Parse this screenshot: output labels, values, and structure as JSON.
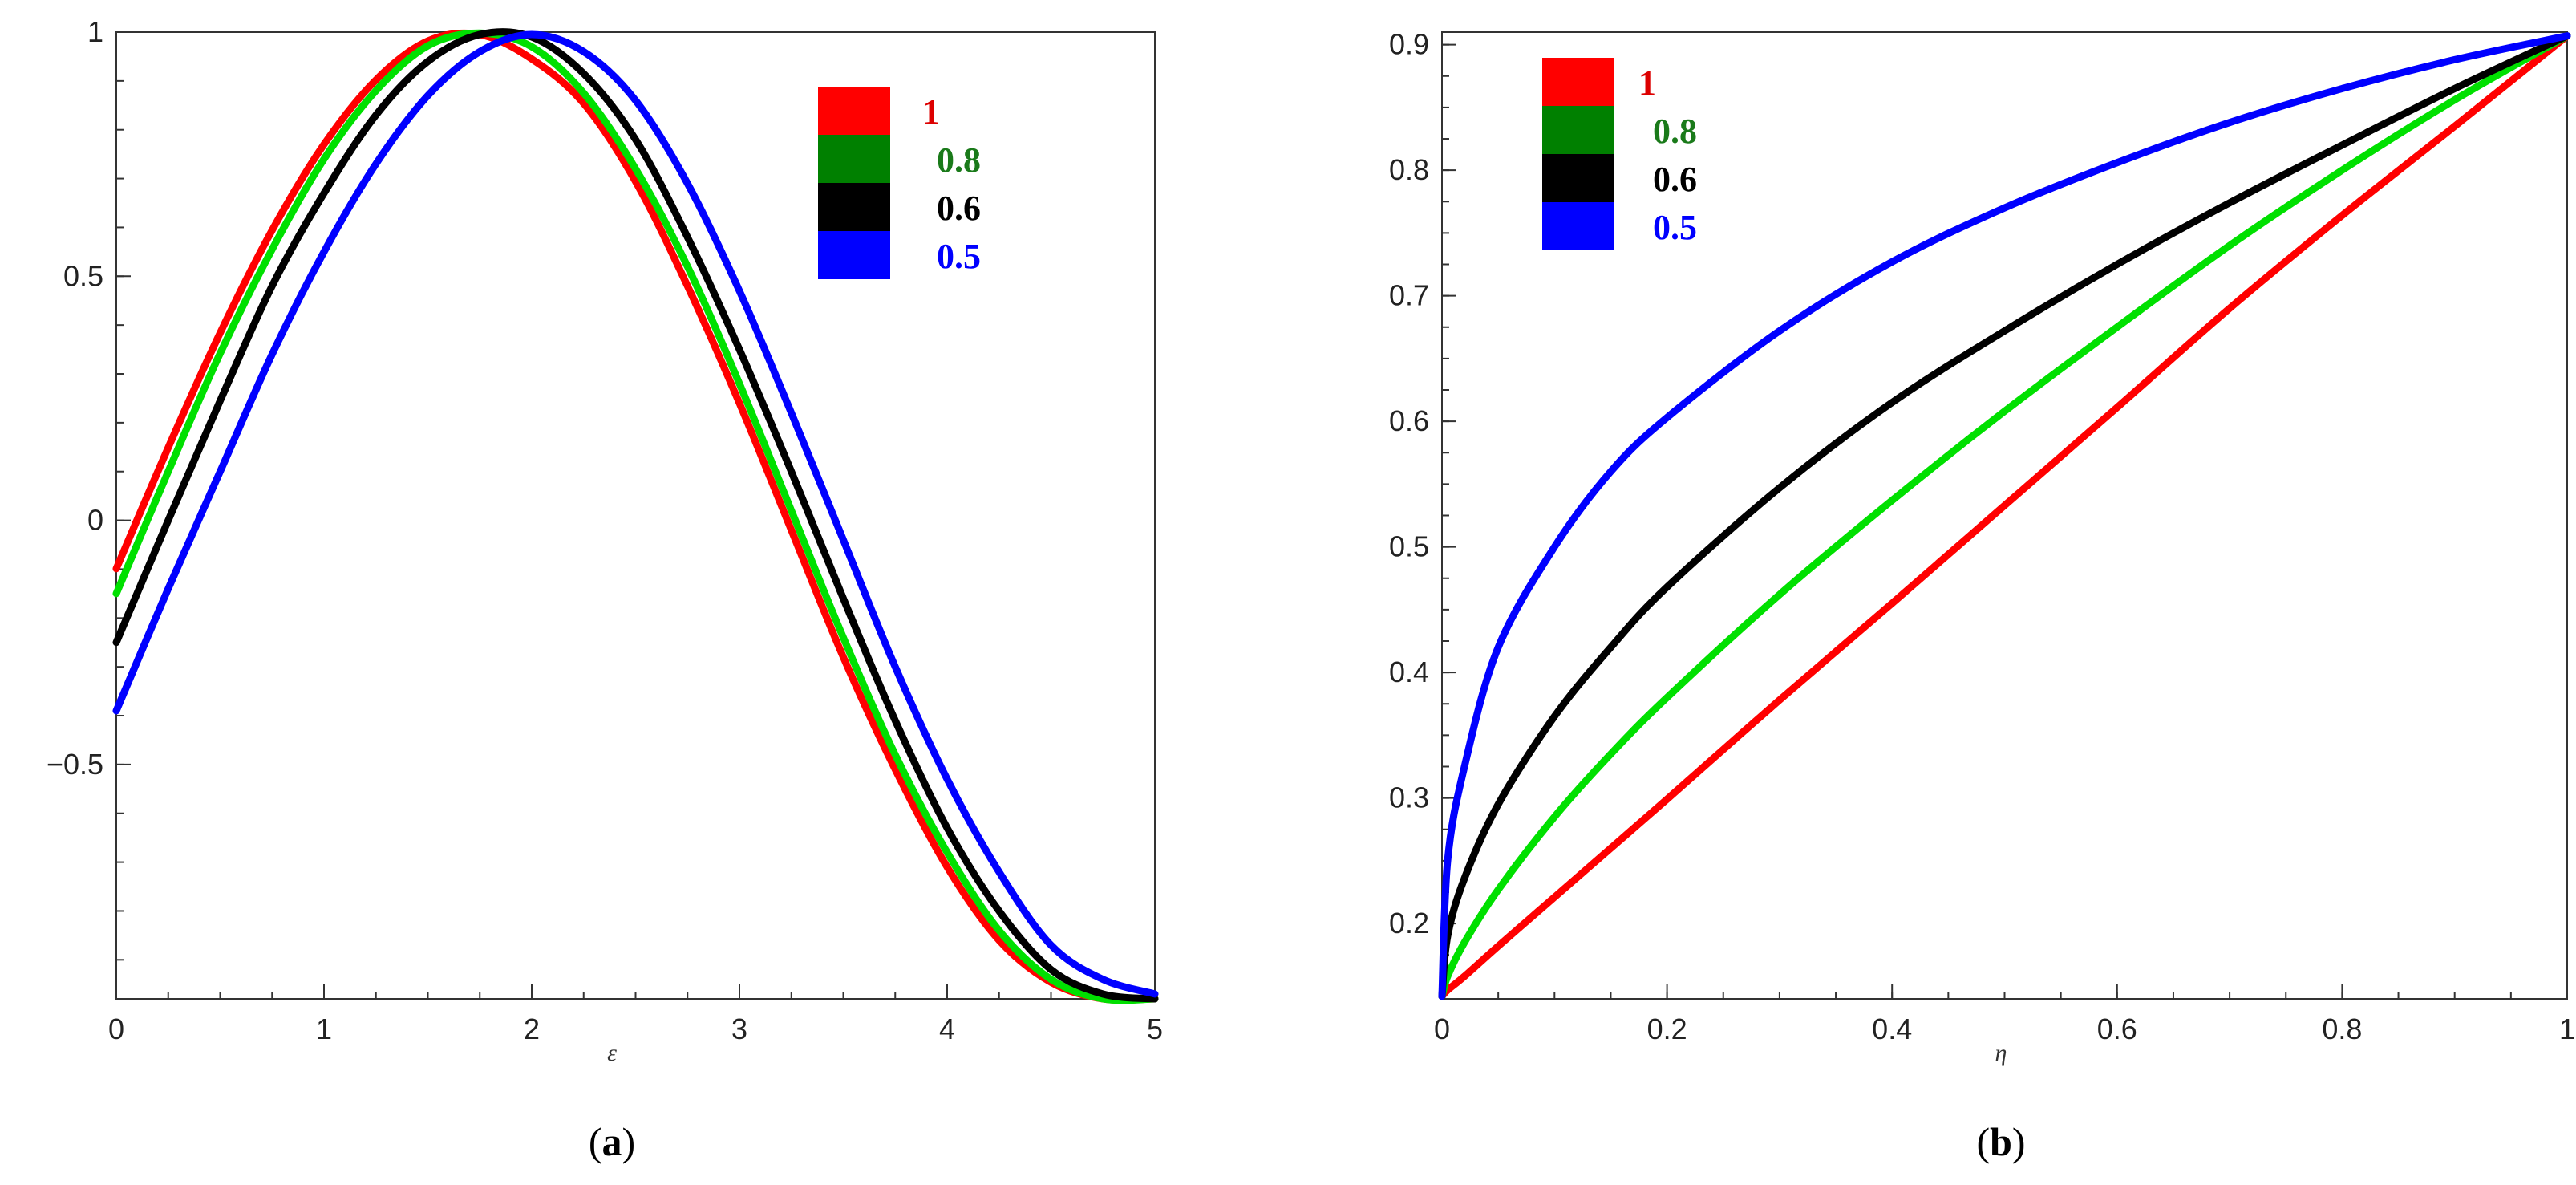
{
  "colors": {
    "red": "#ff0000",
    "green": "#008000",
    "lime": "#00e000",
    "black": "#000000",
    "blue": "#0000ff"
  },
  "chart_data": [
    {
      "type": "line",
      "caption_open": "(",
      "caption_letter": "a",
      "caption_close": ")",
      "xlabel": "ε",
      "ylabel": "",
      "xlim": [
        0,
        5
      ],
      "ylim": [
        -0.98,
        1.0
      ],
      "xticks": [
        {
          "v": 0,
          "label": "0"
        },
        {
          "v": 1,
          "label": "1"
        },
        {
          "v": 2,
          "label": "2"
        },
        {
          "v": 3,
          "label": "3"
        },
        {
          "v": 4,
          "label": "4"
        },
        {
          "v": 5,
          "label": "5"
        }
      ],
      "yticks": [
        {
          "v": 1,
          "label": "1"
        },
        {
          "v": 0.5,
          "label": "0.5"
        },
        {
          "v": 0,
          "label": "0"
        },
        {
          "v": -0.5,
          "label": "−0.5"
        }
      ],
      "x": [
        0,
        0.25,
        0.5,
        0.75,
        1.0,
        1.25,
        1.5,
        1.75,
        2.0,
        2.25,
        2.5,
        2.75,
        3.0,
        3.25,
        3.5,
        3.75,
        4.0,
        4.25,
        4.5,
        4.75,
        5.0
      ],
      "series": [
        {
          "name": "1",
          "color": "#ff0000",
          "legend_swatch": "#ff0000",
          "legend_color": "#dd0000",
          "values": [
            -0.099,
            0.149,
            0.384,
            0.594,
            0.77,
            0.902,
            0.982,
            0.995,
            0.945,
            0.854,
            0.694,
            0.48,
            0.24,
            -0.02,
            -0.28,
            -0.51,
            -0.71,
            -0.86,
            -0.946,
            -0.98,
            -0.98
          ]
        },
        {
          "name": "0.8",
          "color": "#00e000",
          "legend_swatch": "#008000",
          "legend_color": "#1a7a1a",
          "values": [
            -0.15,
            0.1,
            0.342,
            0.555,
            0.74,
            0.88,
            0.972,
            0.998,
            0.97,
            0.875,
            0.72,
            0.52,
            0.28,
            0.02,
            -0.24,
            -0.48,
            -0.68,
            -0.84,
            -0.94,
            -0.98,
            -0.98
          ]
        },
        {
          "name": "0.6",
          "color": "#000000",
          "legend_swatch": "#000000",
          "legend_color": "#000000",
          "values": [
            -0.25,
            0.0,
            0.245,
            0.48,
            0.67,
            0.83,
            0.94,
            0.995,
            0.99,
            0.915,
            0.78,
            0.58,
            0.35,
            0.1,
            -0.16,
            -0.41,
            -0.63,
            -0.8,
            -0.92,
            -0.97,
            -0.98
          ]
        },
        {
          "name": "0.5",
          "color": "#0000ff",
          "legend_swatch": "#0000ff",
          "legend_color": "#0000ff",
          "values": [
            -0.39,
            -0.14,
            0.1,
            0.34,
            0.55,
            0.73,
            0.87,
            0.96,
            0.995,
            0.96,
            0.86,
            0.69,
            0.47,
            0.22,
            -0.04,
            -0.3,
            -0.53,
            -0.72,
            -0.87,
            -0.94,
            -0.97
          ]
        }
      ]
    },
    {
      "type": "line",
      "caption_open": "(",
      "caption_letter": "b",
      "caption_close": ")",
      "xlabel": "η",
      "ylabel": "",
      "xlim": [
        0,
        1
      ],
      "ylim": [
        0.14,
        0.91
      ],
      "xticks": [
        {
          "v": 0,
          "label": "0"
        },
        {
          "v": 0.2,
          "label": "0.2"
        },
        {
          "v": 0.4,
          "label": "0.4"
        },
        {
          "v": 0.6,
          "label": "0.6"
        },
        {
          "v": 0.8,
          "label": "0.8"
        },
        {
          "v": 1,
          "label": "1"
        }
      ],
      "yticks": [
        {
          "v": 0.9,
          "label": "0.9"
        },
        {
          "v": 0.8,
          "label": "0.8"
        },
        {
          "v": 0.7,
          "label": "0.7"
        },
        {
          "v": 0.6,
          "label": "0.6"
        },
        {
          "v": 0.5,
          "label": "0.5"
        },
        {
          "v": 0.4,
          "label": "0.4"
        },
        {
          "v": 0.3,
          "label": "0.3"
        },
        {
          "v": 0.2,
          "label": "0.2"
        }
      ],
      "x": [
        0,
        0.005,
        0.02,
        0.05,
        0.1,
        0.15,
        0.2,
        0.3,
        0.4,
        0.5,
        0.6,
        0.7,
        0.8,
        0.9,
        1.0
      ],
      "series": [
        {
          "name": "1",
          "color": "#ff0000",
          "legend_swatch": "#ff0000",
          "legend_color": "#dd0000",
          "values": [
            0.142,
            0.147,
            0.158,
            0.182,
            0.221,
            0.26,
            0.299,
            0.378,
            0.455,
            0.533,
            0.611,
            0.69,
            0.764,
            0.835,
            0.907
          ]
        },
        {
          "name": "0.8",
          "color": "#00e000",
          "legend_swatch": "#008000",
          "legend_color": "#1a7a1a",
          "values": [
            0.142,
            0.158,
            0.185,
            0.227,
            0.285,
            0.335,
            0.38,
            0.462,
            0.537,
            0.608,
            0.675,
            0.74,
            0.8,
            0.856,
            0.907
          ]
        },
        {
          "name": "0.6",
          "color": "#000000",
          "legend_swatch": "#000000",
          "legend_color": "#000000",
          "values": [
            0.142,
            0.19,
            0.236,
            0.295,
            0.365,
            0.42,
            0.468,
            0.547,
            0.615,
            0.672,
            0.725,
            0.774,
            0.82,
            0.865,
            0.907
          ]
        },
        {
          "name": "0.5",
          "color": "#0000ff",
          "legend_swatch": "#0000ff",
          "legend_color": "#0000ff",
          "values": [
            0.142,
            0.25,
            0.325,
            0.42,
            0.5,
            0.56,
            0.603,
            0.672,
            0.727,
            0.77,
            0.806,
            0.838,
            0.865,
            0.888,
            0.907
          ]
        }
      ]
    }
  ]
}
